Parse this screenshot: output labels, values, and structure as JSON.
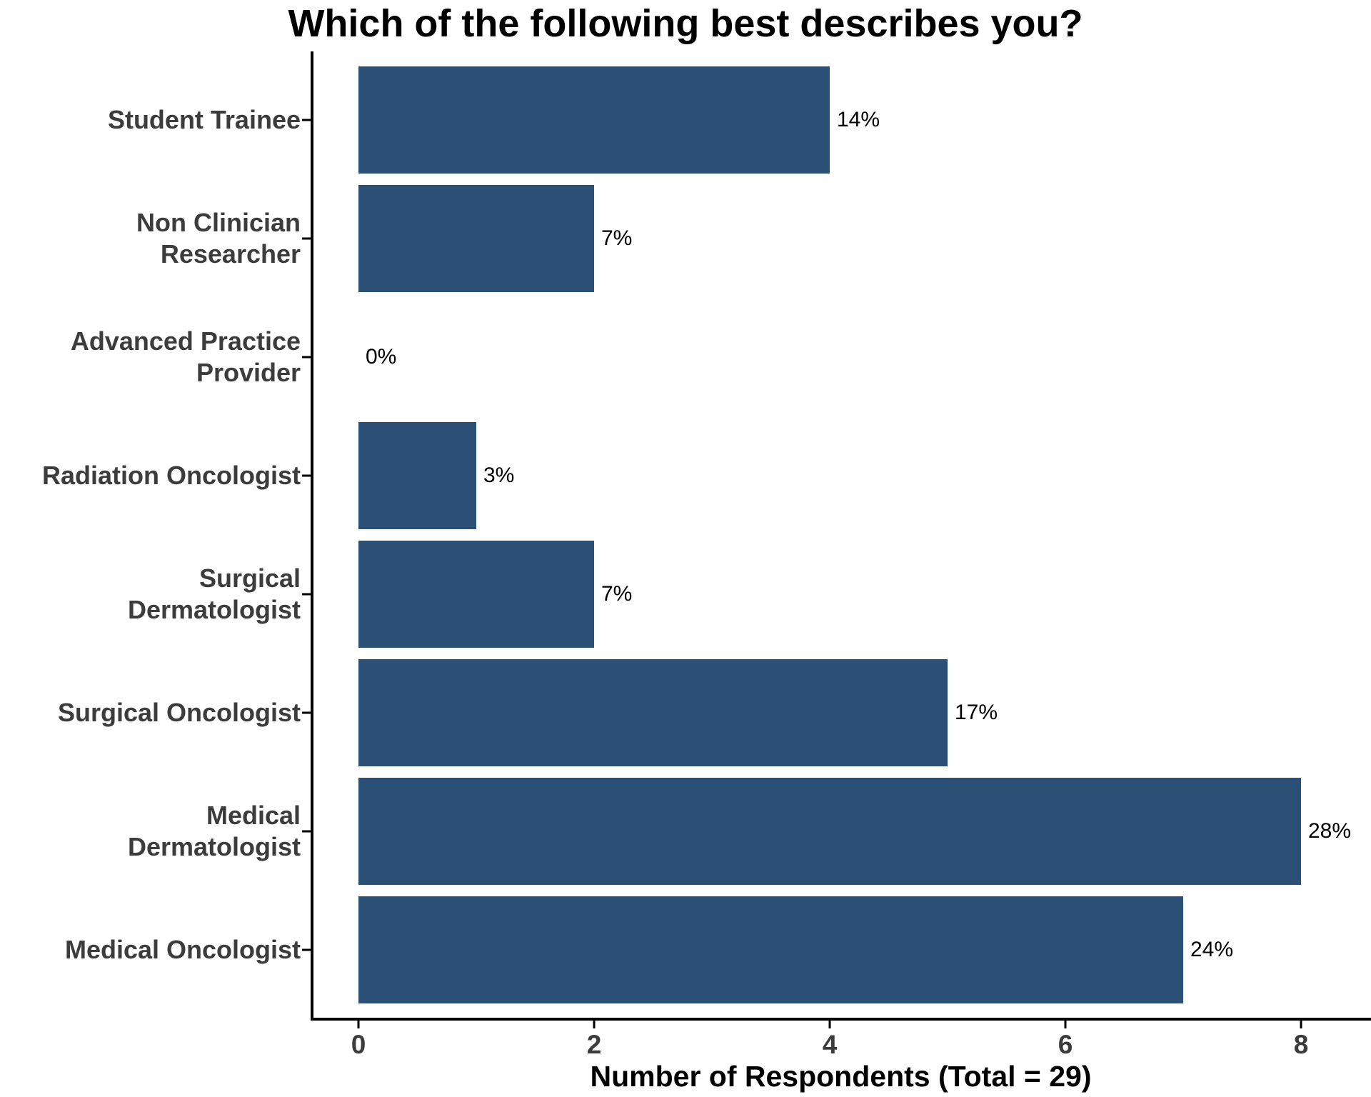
{
  "chart_data": {
    "type": "bar",
    "orientation": "horizontal",
    "title": "Which of the following best describes you?",
    "xlabel": "Number of Respondents (Total = 29)",
    "ylabel": "",
    "total_respondents": 29,
    "categories": [
      "Student Trainee",
      "Non Clinician Researcher",
      "Advanced Practice Provider",
      "Radiation Oncologist",
      "Surgical Dermatologist",
      "Surgical Oncologist",
      "Medical Dermatologist",
      "Medical Oncologist"
    ],
    "category_lines": [
      [
        "Student Trainee"
      ],
      [
        "Non Clinician",
        "Researcher"
      ],
      [
        "Advanced Practice",
        "Provider"
      ],
      [
        "Radiation Oncologist"
      ],
      [
        "Surgical",
        "Dermatologist"
      ],
      [
        "Surgical Oncologist"
      ],
      [
        "Medical",
        "Dermatologist"
      ],
      [
        "Medical Oncologist"
      ]
    ],
    "values": [
      4,
      2,
      0,
      1,
      2,
      5,
      8,
      7
    ],
    "bar_labels": [
      "14%",
      "7%",
      "0%",
      "3%",
      "7%",
      "17%",
      "28%",
      "24%"
    ],
    "x_ticks": [
      "0",
      "2",
      "4",
      "6",
      "8"
    ],
    "x_tick_values": [
      0,
      2,
      4,
      6,
      8
    ],
    "xlim": [
      0,
      8.6
    ],
    "grid": false,
    "legend": false,
    "bar_color": "#2B4F75",
    "axis_color": "#000000",
    "tick_label_color": "#3C3C3C",
    "category_label_color": "#3C3C3C",
    "bar_label_color": "#000000"
  }
}
